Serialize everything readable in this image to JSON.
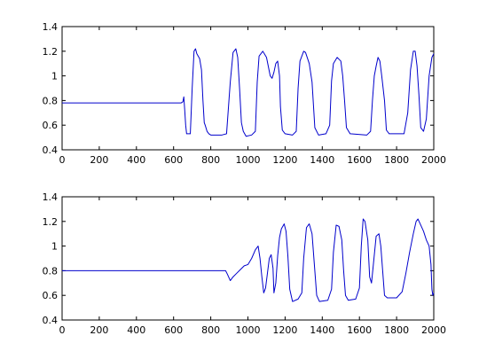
{
  "chart_data": [
    {
      "type": "line",
      "title": "",
      "xlabel": "",
      "ylabel": "",
      "xlim": [
        0,
        2000
      ],
      "ylim": [
        0.4,
        1.4
      ],
      "x_ticks": [
        "0",
        "200",
        "400",
        "600",
        "800",
        "1000",
        "1200",
        "1400",
        "1600",
        "1800",
        "2000"
      ],
      "y_ticks": [
        "0.4",
        "0.6",
        "0.8",
        "1",
        "1.2",
        "1.4"
      ],
      "grid": false,
      "series": [
        {
          "color": "#0000cc",
          "points": [
            [
              0,
              0.78
            ],
            [
              640,
              0.78
            ],
            [
              650,
              0.79
            ],
            [
              655,
              0.83
            ],
            [
              660,
              0.72
            ],
            [
              665,
              0.6
            ],
            [
              670,
              0.53
            ],
            [
              690,
              0.53
            ],
            [
              700,
              0.9
            ],
            [
              710,
              1.2
            ],
            [
              718,
              1.22
            ],
            [
              725,
              1.18
            ],
            [
              740,
              1.14
            ],
            [
              750,
              1.05
            ],
            [
              758,
              0.8
            ],
            [
              765,
              0.62
            ],
            [
              770,
              0.6
            ],
            [
              780,
              0.55
            ],
            [
              790,
              0.53
            ],
            [
              800,
              0.52
            ],
            [
              860,
              0.52
            ],
            [
              885,
              0.53
            ],
            [
              905,
              0.95
            ],
            [
              920,
              1.19
            ],
            [
              935,
              1.22
            ],
            [
              945,
              1.15
            ],
            [
              955,
              0.9
            ],
            [
              965,
              0.62
            ],
            [
              975,
              0.55
            ],
            [
              990,
              0.51
            ],
            [
              1020,
              0.52
            ],
            [
              1040,
              0.55
            ],
            [
              1050,
              0.95
            ],
            [
              1060,
              1.16
            ],
            [
              1080,
              1.2
            ],
            [
              1100,
              1.15
            ],
            [
              1120,
              1.0
            ],
            [
              1130,
              0.98
            ],
            [
              1140,
              1.03
            ],
            [
              1150,
              1.1
            ],
            [
              1160,
              1.12
            ],
            [
              1170,
              1.0
            ],
            [
              1175,
              0.75
            ],
            [
              1185,
              0.56
            ],
            [
              1200,
              0.53
            ],
            [
              1240,
              0.52
            ],
            [
              1260,
              0.55
            ],
            [
              1270,
              0.9
            ],
            [
              1280,
              1.12
            ],
            [
              1300,
              1.2
            ],
            [
              1310,
              1.19
            ],
            [
              1330,
              1.1
            ],
            [
              1345,
              0.95
            ],
            [
              1360,
              0.58
            ],
            [
              1380,
              0.52
            ],
            [
              1420,
              0.53
            ],
            [
              1440,
              0.6
            ],
            [
              1450,
              0.96
            ],
            [
              1460,
              1.1
            ],
            [
              1480,
              1.15
            ],
            [
              1500,
              1.12
            ],
            [
              1510,
              1.0
            ],
            [
              1520,
              0.8
            ],
            [
              1530,
              0.58
            ],
            [
              1550,
              0.53
            ],
            [
              1640,
              0.52
            ],
            [
              1660,
              0.55
            ],
            [
              1670,
              0.8
            ],
            [
              1680,
              1.0
            ],
            [
              1690,
              1.08
            ],
            [
              1700,
              1.15
            ],
            [
              1710,
              1.12
            ],
            [
              1720,
              1.0
            ],
            [
              1735,
              0.8
            ],
            [
              1745,
              0.56
            ],
            [
              1760,
              0.53
            ],
            [
              1840,
              0.53
            ],
            [
              1860,
              0.7
            ],
            [
              1875,
              1.05
            ],
            [
              1890,
              1.2
            ],
            [
              1900,
              1.2
            ],
            [
              1910,
              1.08
            ],
            [
              1920,
              0.85
            ],
            [
              1930,
              0.58
            ],
            [
              1945,
              0.55
            ],
            [
              1960,
              0.65
            ],
            [
              1975,
              1.0
            ],
            [
              1990,
              1.15
            ],
            [
              2000,
              1.18
            ]
          ]
        }
      ]
    },
    {
      "type": "line",
      "title": "",
      "xlabel": "",
      "ylabel": "",
      "xlim": [
        0,
        2000
      ],
      "ylim": [
        0.4,
        1.4
      ],
      "x_ticks": [
        "0",
        "200",
        "400",
        "600",
        "800",
        "1000",
        "1200",
        "1400",
        "1600",
        "1800",
        "2000"
      ],
      "y_ticks": [
        "0.4",
        "0.6",
        "0.8",
        "1",
        "1.2",
        "1.4"
      ],
      "grid": false,
      "series": [
        {
          "color": "#0000cc",
          "points": [
            [
              0,
              0.8
            ],
            [
              880,
              0.8
            ],
            [
              890,
              0.77
            ],
            [
              905,
              0.72
            ],
            [
              920,
              0.75
            ],
            [
              940,
              0.78
            ],
            [
              960,
              0.81
            ],
            [
              980,
              0.84
            ],
            [
              1000,
              0.85
            ],
            [
              1020,
              0.9
            ],
            [
              1040,
              0.97
            ],
            [
              1055,
              1.0
            ],
            [
              1065,
              0.9
            ],
            [
              1075,
              0.75
            ],
            [
              1085,
              0.62
            ],
            [
              1095,
              0.66
            ],
            [
              1105,
              0.78
            ],
            [
              1115,
              0.9
            ],
            [
              1125,
              0.93
            ],
            [
              1135,
              0.82
            ],
            [
              1140,
              0.62
            ],
            [
              1150,
              0.7
            ],
            [
              1160,
              0.92
            ],
            [
              1170,
              1.07
            ],
            [
              1180,
              1.14
            ],
            [
              1195,
              1.18
            ],
            [
              1205,
              1.12
            ],
            [
              1215,
              0.92
            ],
            [
              1225,
              0.65
            ],
            [
              1240,
              0.55
            ],
            [
              1270,
              0.57
            ],
            [
              1290,
              0.62
            ],
            [
              1300,
              0.9
            ],
            [
              1315,
              1.15
            ],
            [
              1330,
              1.18
            ],
            [
              1345,
              1.1
            ],
            [
              1360,
              0.8
            ],
            [
              1370,
              0.6
            ],
            [
              1385,
              0.55
            ],
            [
              1430,
              0.56
            ],
            [
              1450,
              0.65
            ],
            [
              1460,
              0.95
            ],
            [
              1475,
              1.17
            ],
            [
              1490,
              1.16
            ],
            [
              1505,
              1.05
            ],
            [
              1515,
              0.8
            ],
            [
              1525,
              0.6
            ],
            [
              1540,
              0.56
            ],
            [
              1580,
              0.57
            ],
            [
              1600,
              0.66
            ],
            [
              1610,
              1.0
            ],
            [
              1620,
              1.22
            ],
            [
              1630,
              1.2
            ],
            [
              1645,
              1.05
            ],
            [
              1655,
              0.75
            ],
            [
              1665,
              0.7
            ],
            [
              1675,
              0.85
            ],
            [
              1690,
              1.08
            ],
            [
              1705,
              1.1
            ],
            [
              1715,
              1.0
            ],
            [
              1725,
              0.8
            ],
            [
              1735,
              0.6
            ],
            [
              1750,
              0.58
            ],
            [
              1800,
              0.58
            ],
            [
              1830,
              0.63
            ],
            [
              1850,
              0.78
            ],
            [
              1870,
              0.95
            ],
            [
              1890,
              1.1
            ],
            [
              1905,
              1.2
            ],
            [
              1915,
              1.22
            ],
            [
              1930,
              1.17
            ],
            [
              1945,
              1.12
            ],
            [
              1960,
              1.05
            ],
            [
              1975,
              1.0
            ],
            [
              1985,
              0.85
            ],
            [
              1990,
              0.65
            ],
            [
              1995,
              0.6
            ],
            [
              2000,
              0.62
            ]
          ]
        }
      ]
    }
  ]
}
